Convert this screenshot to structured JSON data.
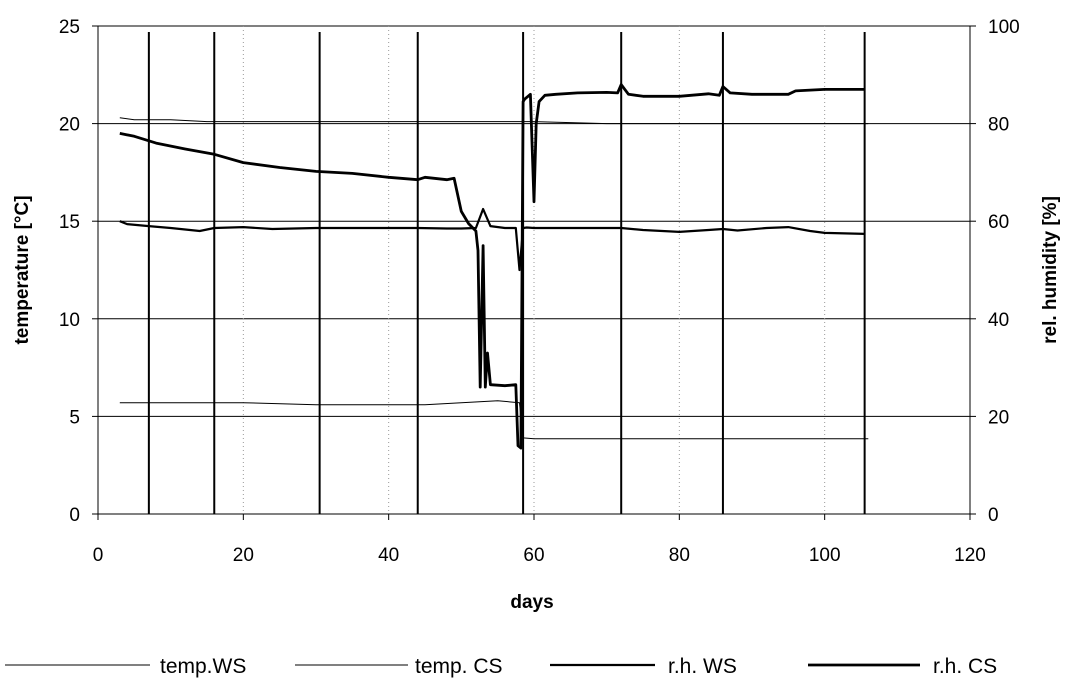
{
  "chart_data": {
    "type": "line",
    "title": "",
    "xlabel": "days",
    "ylabel": "temperature  [°C]",
    "ylabel_right": "rel. humidity  [%]",
    "xlim": [
      0,
      120
    ],
    "ylim": [
      0,
      25
    ],
    "ylim_right": [
      0,
      100
    ],
    "x_ticks": [
      "0",
      "20",
      "40",
      "60",
      "80",
      "100",
      "120"
    ],
    "y_ticks": [
      "0",
      "5",
      "10",
      "15",
      "20",
      "25"
    ],
    "y_ticks_right": [
      "0",
      "20",
      "40",
      "60",
      "80",
      "100"
    ],
    "grid": true,
    "legend_position": "bottom",
    "event_lines_x": [
      7,
      16,
      30.5,
      44,
      58.5,
      72,
      86,
      105.5
    ],
    "series": [
      {
        "name": "temp.WS",
        "axis": "left",
        "x": [
          3,
          5,
          10,
          15,
          20,
          25,
          30,
          35,
          40,
          45,
          50,
          55,
          58,
          60,
          70,
          80,
          90,
          100,
          106
        ],
        "values": [
          20.3,
          20.2,
          20.2,
          20.1,
          20.1,
          20.1,
          20.1,
          20.1,
          20.1,
          20.1,
          20.1,
          20.1,
          20.1,
          20.1,
          20.0,
          20.0,
          20.0,
          20.0,
          20.0
        ]
      },
      {
        "name": "temp. CS",
        "axis": "left",
        "x": [
          3,
          10,
          20,
          30,
          40,
          45,
          50,
          55,
          58,
          58.5,
          60,
          70,
          80,
          86,
          90,
          100,
          106
        ],
        "values": [
          5.7,
          5.7,
          5.7,
          5.6,
          5.6,
          5.6,
          5.7,
          5.8,
          5.7,
          3.9,
          3.85,
          3.85,
          3.85,
          3.85,
          3.85,
          3.85,
          3.85
        ]
      },
      {
        "name": "r.h. WS",
        "axis": "right",
        "x": [
          3,
          4,
          7,
          10,
          14,
          16,
          20,
          24,
          30,
          35,
          40,
          44,
          48,
          50,
          52,
          53,
          54,
          56,
          57.5,
          58,
          58.5,
          59,
          60,
          65,
          70,
          72,
          75,
          80,
          84,
          86,
          88,
          92,
          95,
          98,
          100,
          105.5
        ],
        "values": [
          60,
          59.4,
          59,
          58.6,
          58,
          58.6,
          58.8,
          58.4,
          58.6,
          58.6,
          58.6,
          58.6,
          58.5,
          58.5,
          58.6,
          62.5,
          59,
          58.6,
          58.6,
          50,
          58.6,
          58.7,
          58.6,
          58.6,
          58.6,
          58.6,
          58.2,
          57.8,
          58.2,
          58.4,
          58.1,
          58.6,
          58.8,
          58.0,
          57.6,
          57.4
        ]
      },
      {
        "name": "r.h. CS",
        "axis": "right",
        "x": [
          3,
          5,
          8,
          12,
          16,
          20,
          25,
          30,
          35,
          40,
          44,
          45,
          48,
          49,
          50,
          51,
          52,
          52.3,
          52.6,
          53,
          53.3,
          53.6,
          54,
          56,
          57.5,
          57.8,
          58.2,
          58.5,
          58.7,
          59.5,
          60,
          60.3,
          60.7,
          61.5,
          63,
          66,
          70,
          71.5,
          72,
          73,
          75,
          80,
          84,
          85.5,
          86,
          87,
          90,
          95,
          96,
          100,
          105.5
        ],
        "values": [
          78,
          77.4,
          76,
          74.8,
          73.7,
          72,
          71,
          70.2,
          69.8,
          69,
          68.5,
          69,
          68.5,
          68.8,
          62,
          59.5,
          58,
          54,
          26,
          55,
          26,
          33,
          26.5,
          26.3,
          26.5,
          14,
          13.5,
          84.5,
          85,
          86,
          64,
          80,
          84.5,
          85.8,
          86,
          86.3,
          86.4,
          86.3,
          88,
          86,
          85.6,
          85.6,
          86.1,
          85.8,
          87.6,
          86.3,
          86,
          86,
          86.7,
          87,
          87
        ]
      }
    ]
  }
}
